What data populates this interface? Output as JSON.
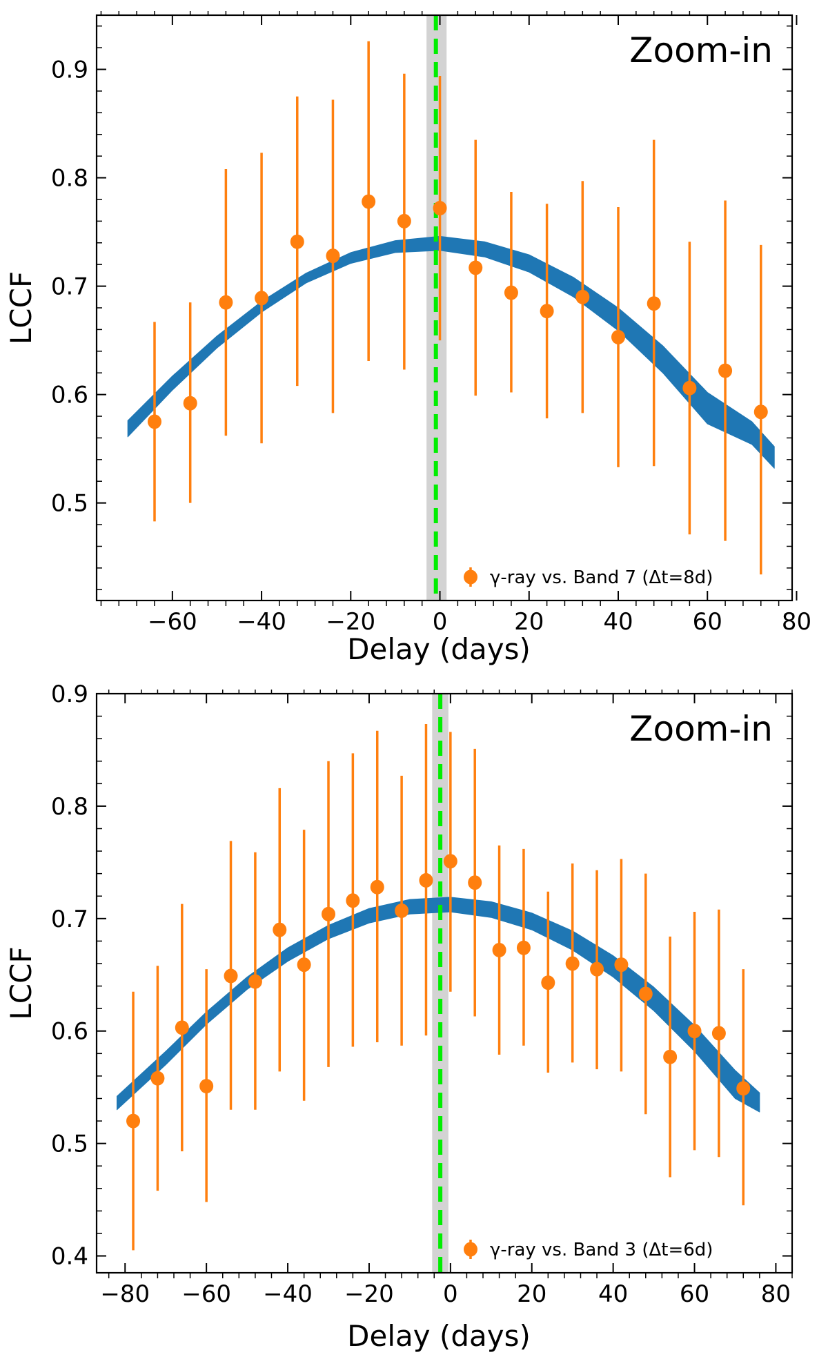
{
  "colors": {
    "points": "#ff7f0e",
    "band": "#1f77b4",
    "peak_line": "#00ee00",
    "peak_span": "#d3d3d3",
    "axes": "#000000"
  },
  "chart_data": [
    {
      "type": "scatter",
      "annotation": "Zoom-in",
      "xlabel": "Delay (days)",
      "ylabel": "LCCF",
      "xlim": [
        -77,
        79
      ],
      "ylim": [
        0.41,
        0.95
      ],
      "xticks": [
        -60,
        -40,
        -20,
        0,
        20,
        40,
        60,
        80
      ],
      "xtick_labels": [
        "−60",
        "−40",
        "−20",
        "0",
        "20",
        "40",
        "60",
        "80"
      ],
      "yticks": [
        0.5,
        0.6,
        0.7,
        0.8,
        0.9
      ],
      "ytick_labels": [
        "0.5",
        "0.6",
        "0.7",
        "0.8",
        "0.9"
      ],
      "legend": {
        "label": "γ-ray vs. Band 7 (Δt=8d)",
        "position": "lower-right"
      },
      "series": [
        {
          "name": "γ-ray vs. Band 7 (Δt=8d)",
          "x": [
            -64,
            -56,
            -48,
            -40,
            -32,
            -24,
            -16,
            -8,
            0,
            8,
            16,
            24,
            32,
            40,
            48,
            56,
            64,
            72
          ],
          "y": [
            0.575,
            0.592,
            0.685,
            0.689,
            0.741,
            0.728,
            0.778,
            0.76,
            0.772,
            0.717,
            0.694,
            0.677,
            0.69,
            0.653,
            0.684,
            0.606,
            0.622,
            0.584
          ],
          "yerr_low": [
            0.092,
            0.092,
            0.123,
            0.134,
            0.133,
            0.145,
            0.147,
            0.137,
            0.122,
            0.118,
            0.092,
            0.099,
            0.107,
            0.12,
            0.15,
            0.135,
            0.157,
            0.15
          ],
          "yerr_high": [
            0.092,
            0.093,
            0.123,
            0.134,
            0.134,
            0.144,
            0.148,
            0.136,
            0.122,
            0.118,
            0.093,
            0.099,
            0.107,
            0.12,
            0.151,
            0.135,
            0.157,
            0.154
          ]
        }
      ],
      "fit_band": {
        "x": [
          -70,
          -60,
          -50,
          -40,
          -30,
          -20,
          -10,
          0,
          10,
          20,
          30,
          40,
          50,
          60,
          70,
          75
        ],
        "y_low": [
          0.561,
          0.604,
          0.643,
          0.676,
          0.703,
          0.721,
          0.731,
          0.733,
          0.727,
          0.713,
          0.69,
          0.659,
          0.62,
          0.573,
          0.554,
          0.532
        ],
        "y_high": [
          0.576,
          0.617,
          0.654,
          0.686,
          0.712,
          0.731,
          0.742,
          0.746,
          0.741,
          0.729,
          0.708,
          0.68,
          0.645,
          0.602,
          0.575,
          0.552
        ]
      },
      "peak_line_x": -0.9,
      "peak_span": [
        -3,
        1.5
      ]
    },
    {
      "type": "scatter",
      "annotation": "Zoom-in",
      "xlabel": "Delay (days)",
      "ylabel": "LCCF",
      "xlim": [
        -87,
        84
      ],
      "ylim": [
        0.385,
        0.9
      ],
      "xticks": [
        -80,
        -60,
        -40,
        -20,
        0,
        20,
        40,
        60,
        80
      ],
      "xtick_labels": [
        "−80",
        "−60",
        "−40",
        "−20",
        "0",
        "20",
        "40",
        "60",
        "80"
      ],
      "yticks": [
        0.4,
        0.5,
        0.6,
        0.7,
        0.8,
        0.9
      ],
      "ytick_labels": [
        "0.4",
        "0.5",
        "0.6",
        "0.7",
        "0.8",
        "0.9"
      ],
      "legend": {
        "label": "γ-ray vs. Band 3 (Δt=6d)",
        "position": "lower-right"
      },
      "series": [
        {
          "name": "γ-ray vs. Band 3 (Δt=6d)",
          "x": [
            -78,
            -72,
            -66,
            -60,
            -54,
            -48,
            -42,
            -36,
            -30,
            -24,
            -18,
            -12,
            -6,
            0,
            6,
            12,
            18,
            24,
            30,
            36,
            42,
            48,
            54,
            60,
            66,
            72
          ],
          "y": [
            0.52,
            0.558,
            0.603,
            0.551,
            0.649,
            0.644,
            0.69,
            0.659,
            0.704,
            0.716,
            0.728,
            0.707,
            0.734,
            0.751,
            0.732,
            0.672,
            0.674,
            0.643,
            0.66,
            0.655,
            0.659,
            0.633,
            0.577,
            0.6,
            0.598,
            0.549
          ],
          "yerr_low": [
            0.115,
            0.1,
            0.11,
            0.103,
            0.119,
            0.114,
            0.126,
            0.121,
            0.136,
            0.13,
            0.138,
            0.12,
            0.138,
            0.116,
            0.119,
            0.093,
            0.087,
            0.08,
            0.088,
            0.089,
            0.095,
            0.107,
            0.107,
            0.106,
            0.11,
            0.104
          ],
          "yerr_high": [
            0.115,
            0.1,
            0.11,
            0.104,
            0.12,
            0.115,
            0.126,
            0.12,
            0.136,
            0.131,
            0.139,
            0.12,
            0.139,
            0.115,
            0.119,
            0.093,
            0.088,
            0.081,
            0.089,
            0.088,
            0.094,
            0.107,
            0.107,
            0.106,
            0.11,
            0.106
          ]
        }
      ],
      "fit_band": {
        "x": [
          -82,
          -70,
          -60,
          -50,
          -40,
          -30,
          -20,
          -10,
          0,
          10,
          20,
          30,
          40,
          50,
          60,
          70,
          76
        ],
        "y_low": [
          0.53,
          0.57,
          0.606,
          0.637,
          0.662,
          0.682,
          0.696,
          0.704,
          0.706,
          0.701,
          0.69,
          0.672,
          0.648,
          0.618,
          0.582,
          0.54,
          0.528
        ],
        "y_high": [
          0.542,
          0.582,
          0.617,
          0.648,
          0.674,
          0.694,
          0.709,
          0.717,
          0.719,
          0.715,
          0.705,
          0.689,
          0.667,
          0.639,
          0.605,
          0.565,
          0.545
        ]
      },
      "peak_line_x": -2.5,
      "peak_span": [
        -4.5,
        -0.5
      ]
    }
  ]
}
